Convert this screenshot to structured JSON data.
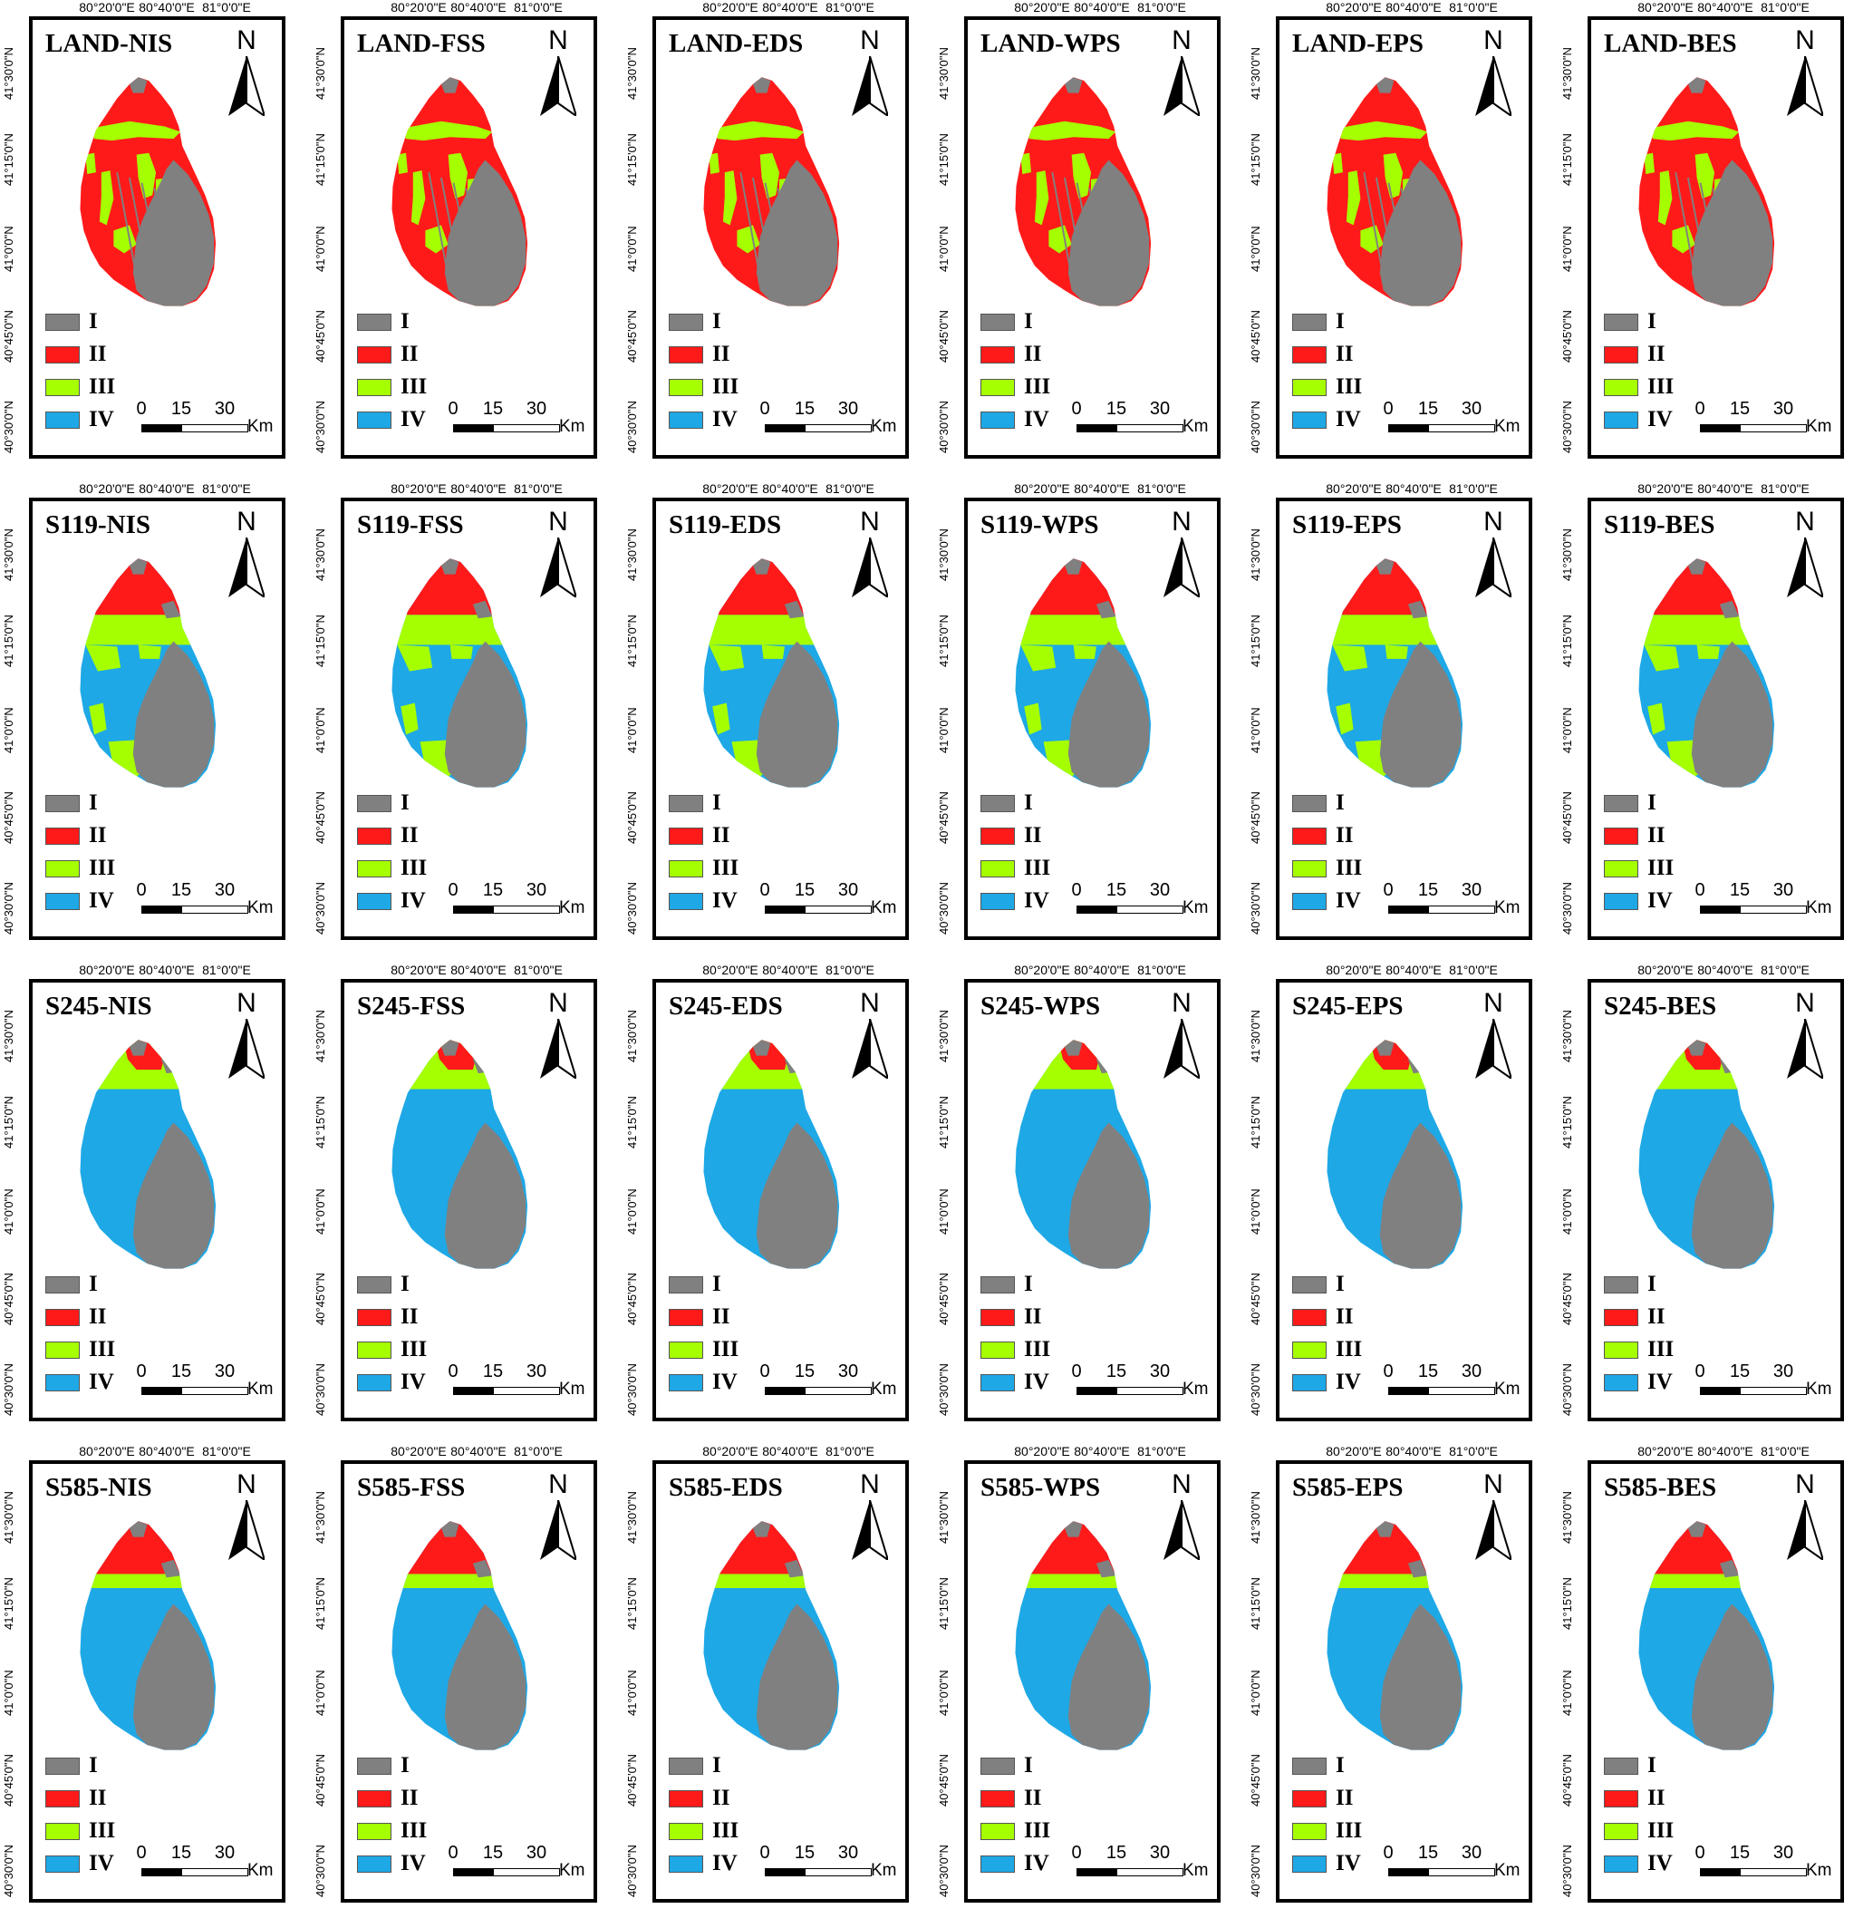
{
  "x_ticks": [
    "80°20'0\"E",
    "80°40'0\"E",
    "81°0'0\"E"
  ],
  "y_ticks": [
    "41°30'0\"N",
    "41°15'0\"N",
    "41°0'0\"N",
    "40°45'0\"N",
    "40°30'0\"N"
  ],
  "north_label": "N",
  "legend": [
    {
      "label": "I",
      "color": "#808080"
    },
    {
      "label": "II",
      "color": "#ff1a1a"
    },
    {
      "label": "III",
      "color": "#a6ff00"
    },
    {
      "label": "IV",
      "color": "#1ea8e6"
    }
  ],
  "scale": {
    "ticks": [
      "0",
      "15",
      "30"
    ],
    "unit": "Km"
  },
  "row_scenarios": [
    "LAND",
    "S119",
    "S245",
    "S585"
  ],
  "col_methods": [
    "NIS",
    "FSS",
    "EDS",
    "WPS",
    "EPS",
    "BES"
  ],
  "panels": [
    {
      "title": "LAND-NIS"
    },
    {
      "title": "LAND-FSS"
    },
    {
      "title": "LAND-EDS"
    },
    {
      "title": "LAND-WPS"
    },
    {
      "title": "LAND-EPS"
    },
    {
      "title": "LAND-BES"
    },
    {
      "title": "S119-NIS"
    },
    {
      "title": "S119-FSS"
    },
    {
      "title": "S119-EDS"
    },
    {
      "title": "S119-WPS"
    },
    {
      "title": "S119-EPS"
    },
    {
      "title": "S119-BES"
    },
    {
      "title": "S245-NIS"
    },
    {
      "title": "S245-FSS"
    },
    {
      "title": "S245-EDS"
    },
    {
      "title": "S245-WPS"
    },
    {
      "title": "S245-EPS"
    },
    {
      "title": "S245-BES"
    },
    {
      "title": "S585-NIS"
    },
    {
      "title": "S585-FSS"
    },
    {
      "title": "S585-EDS"
    },
    {
      "title": "S585-WPS"
    },
    {
      "title": "S585-EPS"
    },
    {
      "title": "S585-BES"
    }
  ],
  "row_patterns": [
    {
      "scenario": "LAND",
      "dominant_class": "II",
      "secondary_class": "III"
    },
    {
      "scenario": "S119",
      "dominant_class": "IV",
      "secondary_class": "III"
    },
    {
      "scenario": "S245",
      "dominant_class": "IV",
      "secondary_class": "III"
    },
    {
      "scenario": "S585",
      "dominant_class": "IV",
      "secondary_class": "II"
    }
  ]
}
